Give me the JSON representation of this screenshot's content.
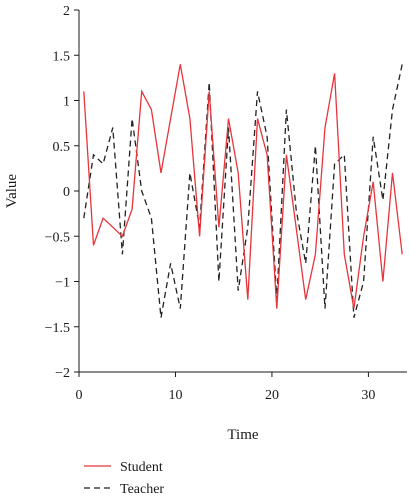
{
  "chart_data": {
    "type": "line",
    "xlabel": "Time",
    "ylabel": "Value",
    "xlim": [
      0,
      34
    ],
    "ylim": [
      -2,
      2
    ],
    "xticks": [
      0,
      10,
      20,
      30
    ],
    "yticks": [
      -2,
      -1.5,
      -1,
      -0.5,
      0,
      0.5,
      1,
      1.5,
      2
    ],
    "xtick_labels": [
      "0",
      "10",
      "20",
      "30"
    ],
    "ytick_labels": [
      "−2",
      "−1.5",
      "−1",
      "−0.5",
      "0",
      "0.5",
      "1",
      "1.5",
      "2"
    ],
    "grid": false,
    "legend_position": "below",
    "series": [
      {
        "name": "Student",
        "color": "#e8343b",
        "dash": "solid",
        "x": [
          0.5,
          1.5,
          2.5,
          3.5,
          4.5,
          5.5,
          6.5,
          7.5,
          8.5,
          9.5,
          10.5,
          11.5,
          12.5,
          13.5,
          14.5,
          15.5,
          16.5,
          17.5,
          18.5,
          19.5,
          20.5,
          21.5,
          22.5,
          23.5,
          24.5,
          25.5,
          26.5,
          27.5,
          28.5,
          29.5,
          30.5,
          31.5,
          32.5,
          33.5
        ],
        "values": [
          1.1,
          -0.6,
          -0.3,
          -0.4,
          -0.5,
          -0.2,
          1.1,
          0.9,
          0.2,
          0.8,
          1.4,
          0.8,
          -0.5,
          1.1,
          -0.4,
          0.8,
          0.2,
          -1.2,
          0.8,
          0.4,
          -1.3,
          0.4,
          -0.4,
          -1.2,
          -0.7,
          0.7,
          1.3,
          -0.7,
          -1.3,
          -0.5,
          0.1,
          -1.0,
          0.2,
          -0.7
        ]
      },
      {
        "name": "Teacher",
        "color": "#222222",
        "dash": "dashed",
        "x": [
          0.5,
          1.5,
          2.5,
          3.5,
          4.5,
          5.5,
          6.5,
          7.5,
          8.5,
          9.5,
          10.5,
          11.5,
          12.5,
          13.5,
          14.5,
          15.5,
          16.5,
          17.5,
          18.5,
          19.5,
          20.5,
          21.5,
          22.5,
          23.5,
          24.5,
          25.5,
          26.5,
          27.5,
          28.5,
          29.5,
          30.5,
          31.5,
          32.5,
          33.5
        ],
        "values": [
          -0.3,
          0.4,
          0.3,
          0.7,
          -0.7,
          0.8,
          0.0,
          -0.3,
          -1.4,
          -0.8,
          -1.3,
          0.2,
          -0.4,
          1.2,
          -1.0,
          0.7,
          -1.1,
          -0.4,
          1.1,
          0.6,
          -1.2,
          0.9,
          -0.2,
          -0.8,
          0.5,
          -1.3,
          0.3,
          0.4,
          -1.4,
          -1.0,
          0.6,
          -0.1,
          0.9,
          1.4
        ]
      }
    ]
  }
}
